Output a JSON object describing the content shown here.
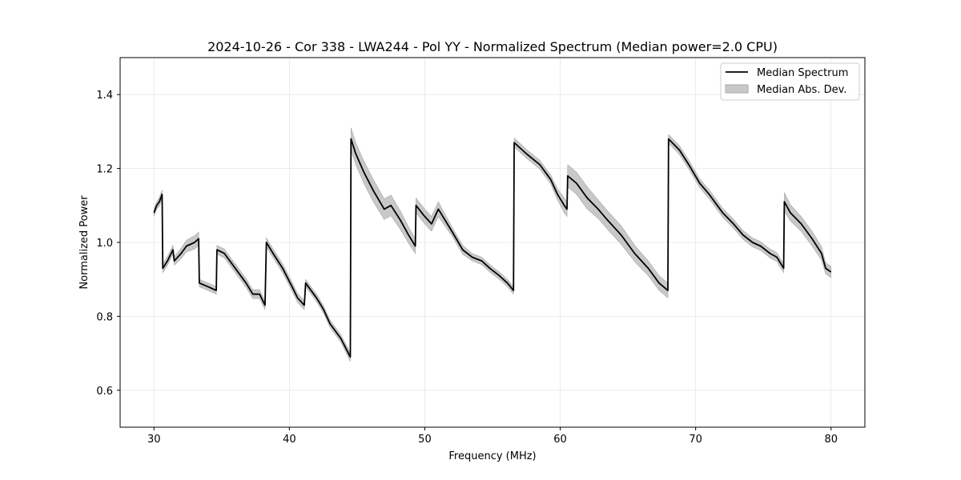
{
  "chart_data": {
    "type": "line",
    "title": "2024-10-26 - Cor 338 - LWA244 - Pol YY - Normalized Spectrum (Median power=2.0 CPU)",
    "xlabel": "Frequency (MHz)",
    "ylabel": "Normalized Power",
    "xlim": [
      27.5,
      82.5
    ],
    "ylim": [
      0.5,
      1.5
    ],
    "xticks": [
      30,
      40,
      50,
      60,
      70,
      80
    ],
    "yticks": [
      0.6,
      0.8,
      1.0,
      1.2,
      1.4
    ],
    "grid": true,
    "legend_position": "top-right",
    "line_color": "#000000",
    "band_color": "#c8c8c8",
    "series": [
      {
        "name": "Median Spectrum",
        "x": [
          30.0,
          30.2,
          30.4,
          30.6,
          30.65,
          31.0,
          31.4,
          31.5,
          32.0,
          32.4,
          33.0,
          33.3,
          33.35,
          34.0,
          34.6,
          34.65,
          35.2,
          36.0,
          36.8,
          37.3,
          37.8,
          38.2,
          38.3,
          38.8,
          39.5,
          40.2,
          40.6,
          41.1,
          41.2,
          42.0,
          42.5,
          43.0,
          43.8,
          44.5,
          44.55,
          44.9,
          45.5,
          46.2,
          47.0,
          47.5,
          48.2,
          48.8,
          49.3,
          49.35,
          50.0,
          50.5,
          51.0,
          52.0,
          52.8,
          53.5,
          54.2,
          54.8,
          55.5,
          56.1,
          56.55,
          56.6,
          57.5,
          58.5,
          59.3,
          59.8,
          60.3,
          60.5,
          60.55,
          61.2,
          62.0,
          62.8,
          63.5,
          64.5,
          65.5,
          66.5,
          67.3,
          67.95,
          68.0,
          68.8,
          69.5,
          70.3,
          71.0,
          72.0,
          72.8,
          73.5,
          74.2,
          74.8,
          75.5,
          76.0,
          76.5,
          76.55,
          77.0,
          77.8,
          78.6,
          79.3,
          79.6,
          80.0
        ],
        "y": [
          1.08,
          1.1,
          1.11,
          1.13,
          0.93,
          0.95,
          0.98,
          0.95,
          0.97,
          0.99,
          1.0,
          1.01,
          0.89,
          0.88,
          0.87,
          0.98,
          0.97,
          0.93,
          0.89,
          0.86,
          0.86,
          0.83,
          1.0,
          0.97,
          0.93,
          0.88,
          0.85,
          0.83,
          0.89,
          0.85,
          0.82,
          0.78,
          0.74,
          0.69,
          1.28,
          1.24,
          1.19,
          1.14,
          1.09,
          1.1,
          1.06,
          1.02,
          0.99,
          1.1,
          1.07,
          1.05,
          1.09,
          1.03,
          0.98,
          0.96,
          0.95,
          0.93,
          0.91,
          0.89,
          0.87,
          1.27,
          1.24,
          1.21,
          1.17,
          1.13,
          1.1,
          1.09,
          1.18,
          1.16,
          1.12,
          1.09,
          1.06,
          1.02,
          0.97,
          0.93,
          0.89,
          0.87,
          1.28,
          1.25,
          1.21,
          1.16,
          1.13,
          1.08,
          1.05,
          1.02,
          1.0,
          0.99,
          0.97,
          0.96,
          0.93,
          1.11,
          1.08,
          1.05,
          1.01,
          0.97,
          0.93,
          0.92
        ]
      },
      {
        "name": "Median Abs. Dev.",
        "dev": [
          0.01,
          0.01,
          0.012,
          0.012,
          0.012,
          0.012,
          0.012,
          0.012,
          0.014,
          0.016,
          0.018,
          0.018,
          0.01,
          0.01,
          0.01,
          0.012,
          0.012,
          0.012,
          0.012,
          0.012,
          0.012,
          0.012,
          0.012,
          0.012,
          0.012,
          0.012,
          0.012,
          0.012,
          0.01,
          0.01,
          0.01,
          0.01,
          0.01,
          0.012,
          0.03,
          0.03,
          0.03,
          0.03,
          0.028,
          0.028,
          0.025,
          0.022,
          0.02,
          0.02,
          0.02,
          0.02,
          0.02,
          0.012,
          0.012,
          0.01,
          0.01,
          0.01,
          0.01,
          0.01,
          0.01,
          0.012,
          0.012,
          0.012,
          0.012,
          0.015,
          0.02,
          0.02,
          0.03,
          0.03,
          0.03,
          0.025,
          0.025,
          0.025,
          0.022,
          0.02,
          0.02,
          0.02,
          0.012,
          0.012,
          0.012,
          0.012,
          0.012,
          0.012,
          0.012,
          0.012,
          0.012,
          0.012,
          0.012,
          0.012,
          0.012,
          0.025,
          0.022,
          0.02,
          0.02,
          0.018,
          0.015,
          0.015
        ]
      }
    ]
  }
}
